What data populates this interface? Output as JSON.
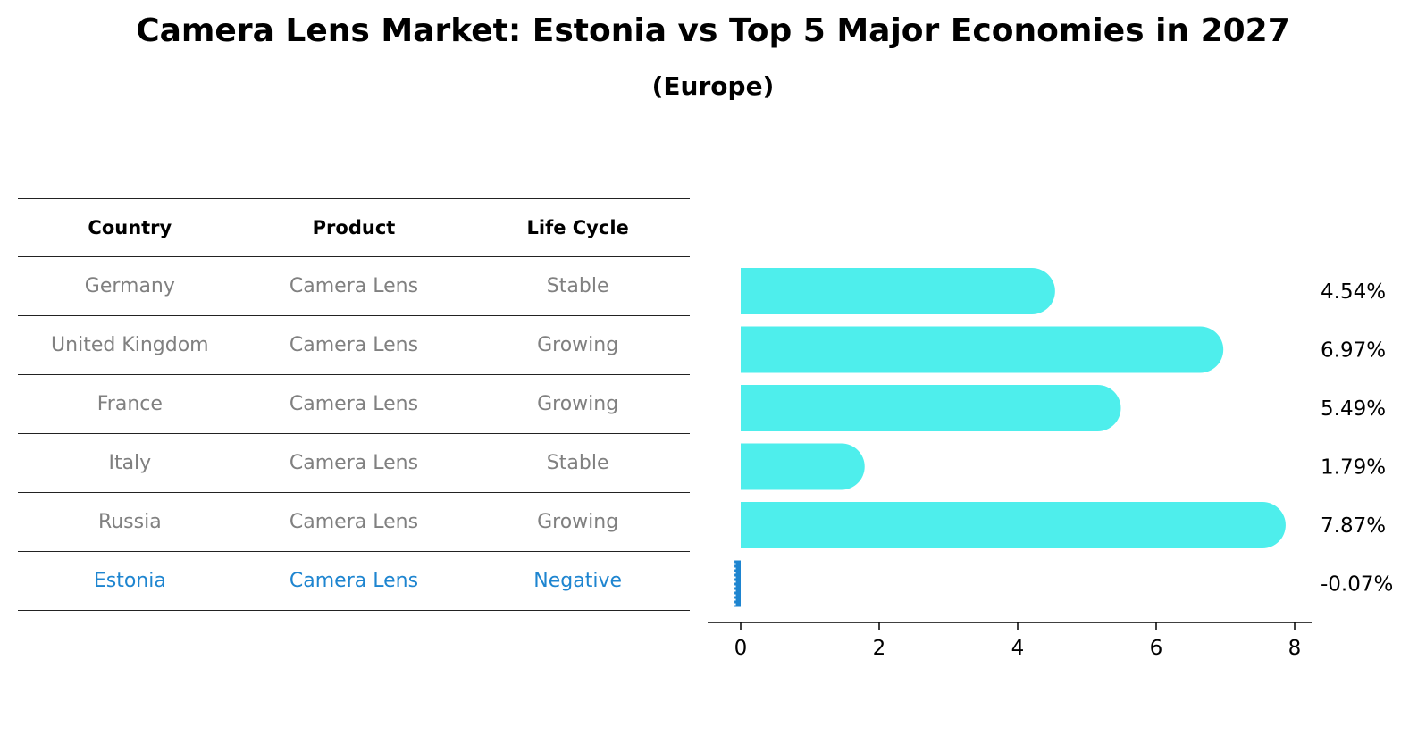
{
  "title": "Camera Lens Market: Estonia vs Top 5 Major Economies in 2027",
  "subtitle": "(Europe)",
  "table": {
    "headers": [
      "Country",
      "Product",
      "Life Cycle"
    ],
    "rows": [
      {
        "country": "Germany",
        "product": "Camera Lens",
        "life_cycle": "Stable"
      },
      {
        "country": "United Kingdom",
        "product": "Camera Lens",
        "life_cycle": "Growing"
      },
      {
        "country": "France",
        "product": "Camera Lens",
        "life_cycle": "Growing"
      },
      {
        "country": "Italy",
        "product": "Camera Lens",
        "life_cycle": "Stable"
      },
      {
        "country": "Russia",
        "product": "Camera Lens",
        "life_cycle": "Growing"
      },
      {
        "country": "Estonia",
        "product": "Camera Lens",
        "life_cycle": "Negative"
      }
    ]
  },
  "chart_data": {
    "type": "bar",
    "orientation": "horizontal",
    "categories": [
      "Germany",
      "United Kingdom",
      "France",
      "Italy",
      "Russia",
      "Estonia"
    ],
    "values": [
      4.54,
      6.97,
      5.49,
      1.79,
      7.87,
      -0.07
    ],
    "data_labels": [
      "4.54%",
      "6.97%",
      "5.49%",
      "1.79%",
      "7.87%",
      "-0.07%"
    ],
    "xlim": [
      -0.5,
      8.3
    ],
    "xticks": [
      0,
      2,
      4,
      6,
      8
    ],
    "colors": {
      "bar": "#4eeeec",
      "highlight": "#1e85d0"
    },
    "grid": false
  }
}
